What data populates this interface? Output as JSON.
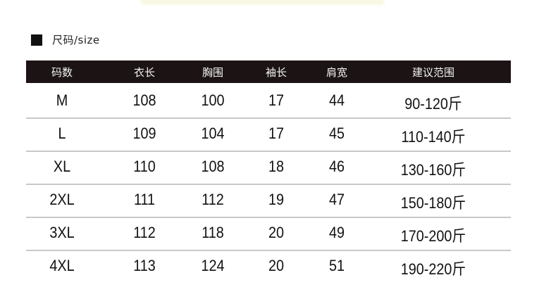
{
  "section": {
    "title": "尺码/size"
  },
  "table": {
    "headers": [
      "码数",
      "衣长",
      "胸围",
      "袖长",
      "肩宽",
      "建议范围"
    ],
    "rows": [
      [
        "M",
        "108",
        "100",
        "17",
        "44",
        "90-120斤"
      ],
      [
        "L",
        "109",
        "104",
        "17",
        "45",
        "110-140斤"
      ],
      [
        "XL",
        "110",
        "108",
        "18",
        "46",
        "130-160斤"
      ],
      [
        "2XL",
        "111",
        "112",
        "19",
        "47",
        "150-180斤"
      ],
      [
        "3XL",
        "112",
        "118",
        "20",
        "49",
        "170-200斤"
      ],
      [
        "4XL",
        "113",
        "124",
        "20",
        "51",
        "190-220斤"
      ]
    ]
  },
  "colors": {
    "header_bg": "#1c1414",
    "divider": "#c8c8c8"
  }
}
